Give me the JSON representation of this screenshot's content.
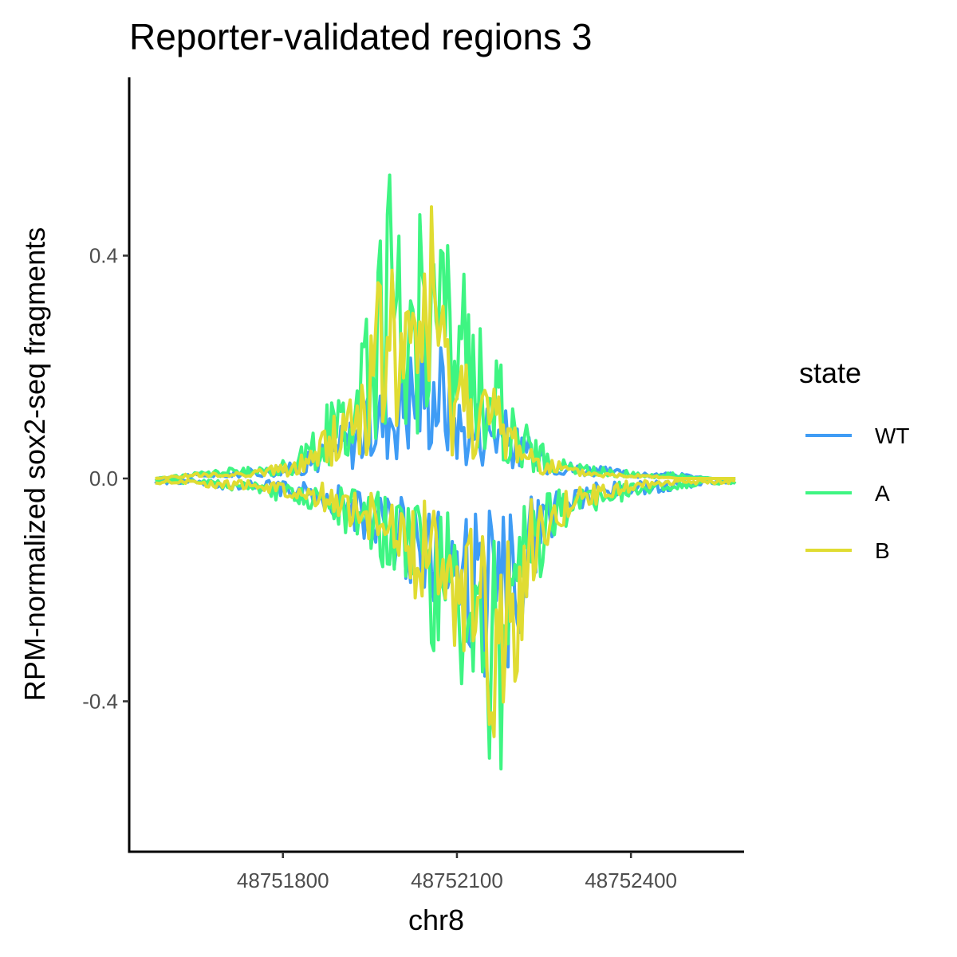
{
  "chart_data": {
    "type": "line",
    "title": "Reporter-validated regions 3",
    "xlabel": "chr8",
    "ylabel": "RPM-normalized sox2-seq fragments",
    "xlim": [
      48751535,
      48752595
    ],
    "ylim": [
      -0.67,
      0.72
    ],
    "x_ticks": [
      48751800,
      48752100,
      48752400
    ],
    "y_ticks": [
      0.4,
      0.0,
      -0.4
    ],
    "x_tick_labels": [
      "48751800",
      "48752100",
      "48752400"
    ],
    "y_tick_labels": [
      "0.4",
      "0.0",
      "-0.4"
    ],
    "grid": false,
    "legend": {
      "title": "state",
      "position": "right",
      "entries": [
        "WT",
        "A",
        "B"
      ]
    },
    "series": [
      {
        "name": "WT",
        "color": "#3f9cf5",
        "x": [
          48751580,
          48751640,
          48751700,
          48751760,
          48751820,
          48751860,
          48751900,
          48751940,
          48751980,
          48752020,
          48752050,
          48752080,
          48752100,
          48752120,
          48752140,
          48752170,
          48752200,
          48752230,
          48752260,
          48752300,
          48752360,
          48752420,
          48752480,
          48752540,
          48752580
        ],
        "y": [
          0.0,
          0.01,
          0.01,
          0.02,
          0.03,
          0.06,
          0.1,
          0.14,
          0.2,
          0.26,
          0.3,
          0.25,
          0.17,
          0.13,
          0.16,
          0.15,
          0.1,
          0.07,
          0.05,
          0.03,
          0.02,
          0.01,
          0.01,
          0.0,
          0.0
        ],
        "y_lower": [
          -0.01,
          -0.01,
          -0.02,
          -0.02,
          -0.04,
          -0.05,
          -0.08,
          -0.11,
          -0.15,
          -0.19,
          -0.22,
          -0.27,
          -0.3,
          -0.33,
          -0.37,
          -0.4,
          -0.32,
          -0.2,
          -0.12,
          -0.07,
          -0.04,
          -0.03,
          -0.02,
          -0.01,
          -0.01
        ]
      },
      {
        "name": "A",
        "color": "#3ef582",
        "x": [
          48751580,
          48751640,
          48751700,
          48751760,
          48751820,
          48751860,
          48751900,
          48751940,
          48751980,
          48752020,
          48752050,
          48752080,
          48752100,
          48752120,
          48752140,
          48752170,
          48752200,
          48752230,
          48752260,
          48752300,
          48752360,
          48752420,
          48752480,
          48752540,
          48752580
        ],
        "y": [
          0.0,
          0.01,
          0.02,
          0.02,
          0.04,
          0.1,
          0.18,
          0.26,
          0.59,
          0.4,
          0.66,
          0.45,
          0.38,
          0.37,
          0.3,
          0.22,
          0.14,
          0.08,
          0.05,
          0.03,
          0.02,
          0.01,
          0.01,
          0.0,
          0.0
        ],
        "y_lower": [
          -0.01,
          -0.01,
          -0.02,
          -0.03,
          -0.05,
          -0.06,
          -0.09,
          -0.13,
          -0.18,
          -0.22,
          -0.3,
          -0.33,
          -0.37,
          -0.42,
          -0.44,
          -0.6,
          -0.42,
          -0.24,
          -0.13,
          -0.07,
          -0.05,
          -0.03,
          -0.02,
          -0.01,
          -0.01
        ]
      },
      {
        "name": "B",
        "color": "#e0dc32",
        "x": [
          48751580,
          48751640,
          48751700,
          48751760,
          48751820,
          48751860,
          48751900,
          48751940,
          48751980,
          48752020,
          48752050,
          48752080,
          48752100,
          48752120,
          48752140,
          48752170,
          48752200,
          48752230,
          48752260,
          48752300,
          48752360,
          48752420,
          48752480,
          48752540,
          48752580
        ],
        "y": [
          0.0,
          0.01,
          0.01,
          0.02,
          0.03,
          0.08,
          0.14,
          0.22,
          0.44,
          0.32,
          0.59,
          0.3,
          0.27,
          0.24,
          0.2,
          0.16,
          0.11,
          0.06,
          0.04,
          0.02,
          0.01,
          0.01,
          0.0,
          0.0,
          0.0
        ],
        "y_lower": [
          -0.01,
          -0.01,
          -0.02,
          -0.02,
          -0.04,
          -0.05,
          -0.08,
          -0.11,
          -0.16,
          -0.2,
          -0.26,
          -0.3,
          -0.33,
          -0.36,
          -0.4,
          -0.56,
          -0.4,
          -0.2,
          -0.12,
          -0.06,
          -0.04,
          -0.02,
          -0.01,
          -0.01,
          -0.01
        ]
      }
    ]
  }
}
